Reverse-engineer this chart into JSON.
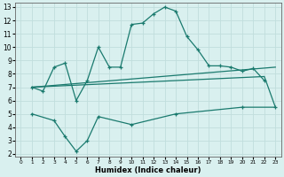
{
  "xlabel": "Humidex (Indice chaleur)",
  "xlim": [
    -0.5,
    23.5
  ],
  "ylim": [
    1.8,
    13.3
  ],
  "xticks": [
    0,
    1,
    2,
    3,
    4,
    5,
    6,
    7,
    8,
    9,
    10,
    11,
    12,
    13,
    14,
    15,
    16,
    17,
    18,
    19,
    20,
    21,
    22,
    23
  ],
  "yticks": [
    2,
    3,
    4,
    5,
    6,
    7,
    8,
    9,
    10,
    11,
    12,
    13
  ],
  "bg_color": "#d9f0ef",
  "line_color": "#1a7a6e",
  "grid_color": "#c0dedd",
  "series": [
    {
      "x": [
        1,
        2,
        3,
        4,
        5,
        6,
        7,
        8,
        9,
        10,
        11,
        12,
        13,
        14,
        15,
        16,
        17,
        18,
        19,
        20,
        21,
        22
      ],
      "y": [
        7.0,
        6.7,
        8.5,
        8.8,
        6.0,
        7.5,
        10.0,
        8.5,
        8.5,
        11.7,
        11.8,
        12.5,
        13.0,
        12.7,
        10.8,
        9.8,
        8.6,
        8.6,
        8.5,
        8.2,
        8.4,
        7.5
      ],
      "marker": true
    },
    {
      "x": [
        1,
        23
      ],
      "y": [
        7.0,
        8.5
      ],
      "marker": false
    },
    {
      "x": [
        1,
        22,
        23
      ],
      "y": [
        7.0,
        7.8,
        5.5
      ],
      "marker": false
    },
    {
      "x": [
        1,
        3,
        4,
        5,
        6,
        7,
        10,
        14,
        20,
        23
      ],
      "y": [
        5.0,
        4.5,
        3.3,
        2.2,
        3.0,
        4.8,
        4.2,
        5.0,
        5.5,
        5.5
      ],
      "marker": true
    }
  ]
}
